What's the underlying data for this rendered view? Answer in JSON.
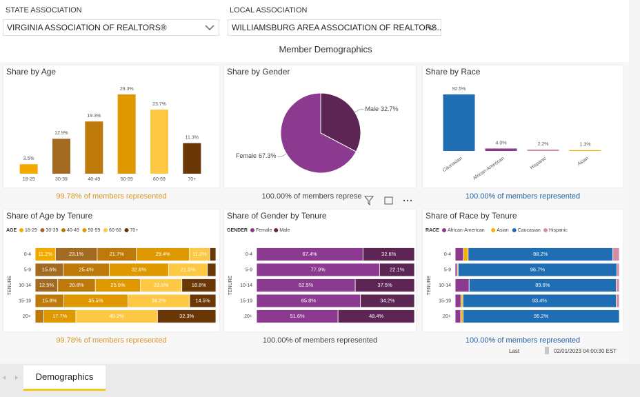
{
  "filters": [
    {
      "label": "STATE ASSOCIATION",
      "value": "VIRGINIA ASSOCIATION OF REALTORS®"
    },
    {
      "label": "LOCAL ASSOCIATION",
      "value": "WILLIAMSBURG AREA ASSOCIATION OF REALTORS..."
    }
  ],
  "page_title": "Member Demographics",
  "chart_data": [
    {
      "type": "bar",
      "title": "Share by Age",
      "categories": [
        "18-29",
        "30-39",
        "40-49",
        "50-59",
        "60-69",
        "70+"
      ],
      "values": [
        3.5,
        12.9,
        19.3,
        29.3,
        23.7,
        11.3
      ],
      "value_labels": [
        "3.5%",
        "12.9%",
        "19.3%",
        "29.3%",
        "23.7%",
        "11.3%"
      ],
      "colors": [
        "#f2a900",
        "#a36a22",
        "#bd7a0b",
        "#df9800",
        "#fdc843",
        "#6a3806"
      ],
      "footnote": "99.78% of members represented",
      "footnote_color": "#d9952a"
    },
    {
      "type": "pie",
      "title": "Share by Gender",
      "categories": [
        "Female",
        "Male"
      ],
      "values": [
        67.3,
        32.7
      ],
      "value_labels": [
        "67.3%",
        "32.7%"
      ],
      "colors": [
        "#8b3a8f",
        "#5c2553"
      ],
      "footnote": "100.00% of members represe",
      "footnote_color": "#444444"
    },
    {
      "type": "bar",
      "title": "Share by Race",
      "categories": [
        "Caucasian",
        "African-American",
        "Hispanic",
        "Asian"
      ],
      "values": [
        92.5,
        4.0,
        2.2,
        1.3
      ],
      "value_labels": [
        "92.5%",
        "4.0%",
        "2.2%",
        "1.3%"
      ],
      "colors": [
        "#1f6db3",
        "#8b3a8f",
        "#d68ba6",
        "#f2b100"
      ],
      "footnote": "100.00% of members represented",
      "footnote_color": "#1f5f9f"
    },
    {
      "type": "stacked_bar",
      "title": "Share of Age by Tenure",
      "legend_title": "AGE",
      "y_label": "TENURE",
      "categories": [
        "0-4",
        "5-9",
        "10-14",
        "15-19",
        "20+"
      ],
      "series": [
        {
          "name": "18-29",
          "color": "#f2a900",
          "values": [
            11.2,
            null,
            null,
            null,
            null
          ],
          "value_labels": [
            "11.2%",
            null,
            null,
            null,
            null
          ]
        },
        {
          "name": "30-39",
          "color": "#a36a22",
          "values": [
            23.1,
            15.6,
            12.5,
            null,
            null
          ],
          "value_labels": [
            "23.1%",
            "15.6%",
            "12.5%",
            null,
            null
          ]
        },
        {
          "name": "40-49",
          "color": "#bd7a0b",
          "values": [
            21.7,
            25.4,
            20.8,
            15.8,
            4.8
          ],
          "value_labels": [
            "21.7%",
            "25.4%",
            "20.8%",
            "15.8%",
            null
          ]
        },
        {
          "name": "50-59",
          "color": "#df9800",
          "values": [
            29.4,
            32.8,
            25.0,
            35.5,
            17.7
          ],
          "value_labels": [
            "29.4%",
            "32.8%",
            "25.0%",
            "35.5%",
            "17.7%"
          ]
        },
        {
          "name": "60-69",
          "color": "#fdc843",
          "values": [
            11.2,
            21.5,
            22.9,
            34.2,
            45.2
          ],
          "value_labels": [
            "11.2%",
            "21.5%",
            "22.9%",
            "34.2%",
            "45.2%"
          ]
        },
        {
          "name": "70+",
          "color": "#6a3806",
          "values": [
            3.4,
            4.7,
            18.8,
            14.5,
            32.3
          ],
          "value_labels": [
            null,
            null,
            "18.8%",
            "14.5%",
            "32.3%"
          ]
        }
      ],
      "footnote": "99.78% of members represented",
      "footnote_color": "#d9952a"
    },
    {
      "type": "stacked_bar",
      "title": "Share of Gender by Tenure",
      "legend_title": "GENDER",
      "y_label": "TENURE",
      "categories": [
        "0-4",
        "5-9",
        "10-14",
        "15-19",
        "20+"
      ],
      "series": [
        {
          "name": "Female",
          "color": "#8b3a8f",
          "values": [
            67.4,
            77.9,
            62.5,
            65.8,
            51.6
          ],
          "value_labels": [
            "67.4%",
            "77.9%",
            "62.5%",
            "65.8%",
            "51.6%"
          ]
        },
        {
          "name": "Male",
          "color": "#5c2553",
          "values": [
            32.6,
            22.1,
            37.5,
            34.2,
            48.4
          ],
          "value_labels": [
            "32.6%",
            "22.1%",
            "37.5%",
            "34.2%",
            "48.4%"
          ]
        }
      ],
      "footnote": "100.00% of members represented",
      "footnote_color": "#444444"
    },
    {
      "type": "stacked_bar",
      "title": "Share of Race by Tenure",
      "legend_title": "RACE",
      "y_label": "TENURE",
      "categories": [
        "0-4",
        "5-9",
        "10-14",
        "15-19",
        "20+"
      ],
      "series": [
        {
          "name": "African-American",
          "color": "#8b3a8f",
          "values": [
            5.0,
            1.2,
            8.5,
            3.5,
            3.4
          ],
          "value_labels": [
            null,
            null,
            null,
            null,
            null
          ]
        },
        {
          "name": "Asian",
          "color": "#f2b100",
          "values": [
            2.9,
            0.6,
            null,
            1.2,
            1.4
          ],
          "value_labels": [
            null,
            null,
            null,
            null,
            null
          ]
        },
        {
          "name": "Caucasian",
          "color": "#1f6db3",
          "values": [
            88.2,
            96.7,
            89.6,
            93.4,
            95.2
          ],
          "value_labels": [
            "88.2%",
            "96.7%",
            "89.6%",
            "93.4%",
            "95.2%"
          ]
        },
        {
          "name": "Hispanic",
          "color": "#d68ba6",
          "values": [
            3.9,
            1.5,
            1.9,
            1.9,
            null
          ],
          "value_labels": [
            null,
            null,
            null,
            null,
            null
          ]
        }
      ],
      "footnote": "100.00% of members represented",
      "footnote_color": "#1f5f9f"
    }
  ],
  "refresh": {
    "label": "Last",
    "timestamp": "02/01/2023 04:00:30 EST"
  },
  "tabs": [
    "Demographics"
  ]
}
